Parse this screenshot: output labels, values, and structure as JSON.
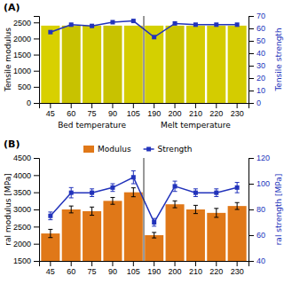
{
  "chart_data": [
    {
      "type": "bar",
      "title": "(A)",
      "categories": [
        "45",
        "60",
        "75",
        "90",
        "105",
        "190",
        "200",
        "210",
        "220",
        "230"
      ],
      "ylabel": "Tensile modulus",
      "y2label": "Tensile strength",
      "annotations": [
        "Bed temperature",
        "Melt temperature"
      ],
      "series": [
        {
          "type": "bar",
          "colors": [
            "#d8d000",
            "#c8c200",
            "#d0ca00",
            "#c8c200",
            "#d4cc00",
            "#d4d000",
            "#cac400",
            "#d4cc00",
            "#d4cc00",
            "#d4cc00"
          ],
          "values": [
            2400,
            2400,
            2400,
            2400,
            2400,
            2400,
            2400,
            2400,
            2400,
            2400
          ]
        },
        {
          "type": "line",
          "axis": "y2",
          "color": "#2233bb",
          "marker": "square",
          "line_style": "solid",
          "values": [
            57,
            63,
            62,
            65,
            66,
            53,
            64,
            63,
            63,
            63
          ]
        }
      ],
      "ylim": [
        0,
        2700
      ],
      "yticks": [
        0,
        500,
        1000,
        1500,
        2000,
        2500
      ],
      "y2lim": [
        0,
        70
      ],
      "y2ticks": [
        0,
        10,
        20,
        30,
        40,
        50,
        60,
        70
      ],
      "grid": false
    },
    {
      "type": "bar",
      "title": "(B)",
      "categories": [
        "45",
        "60",
        "75",
        "90",
        "105",
        "190",
        "200",
        "210",
        "220",
        "230"
      ],
      "ylabel": "ral modulus [MPa]",
      "y2label": "ral strength [MPa]",
      "series": [
        {
          "type": "bar",
          "name": "Modulus",
          "color": "#e07818",
          "values": [
            2300,
            3000,
            2950,
            3250,
            3500,
            2250,
            3150,
            3000,
            2900,
            3100
          ],
          "errors": [
            120,
            100,
            120,
            100,
            130,
            80,
            100,
            120,
            130,
            100
          ]
        },
        {
          "type": "line",
          "name": "Strength",
          "axis": "y2",
          "color": "#2233bb",
          "marker": "square",
          "line_style": "solid",
          "values": [
            75,
            93,
            93,
            97,
            105,
            70,
            98,
            93,
            93,
            97
          ],
          "errors": [
            3,
            4,
            3,
            3,
            5,
            3,
            4,
            3,
            3,
            4
          ]
        }
      ],
      "ylim": [
        1500,
        4500
      ],
      "yticks": [
        1500,
        2000,
        2500,
        3000,
        3500,
        4000,
        4500
      ],
      "y2lim": [
        40,
        120
      ],
      "y2ticks": [
        40,
        60,
        80,
        100,
        120
      ],
      "legend": "upper center",
      "grid": false
    }
  ]
}
